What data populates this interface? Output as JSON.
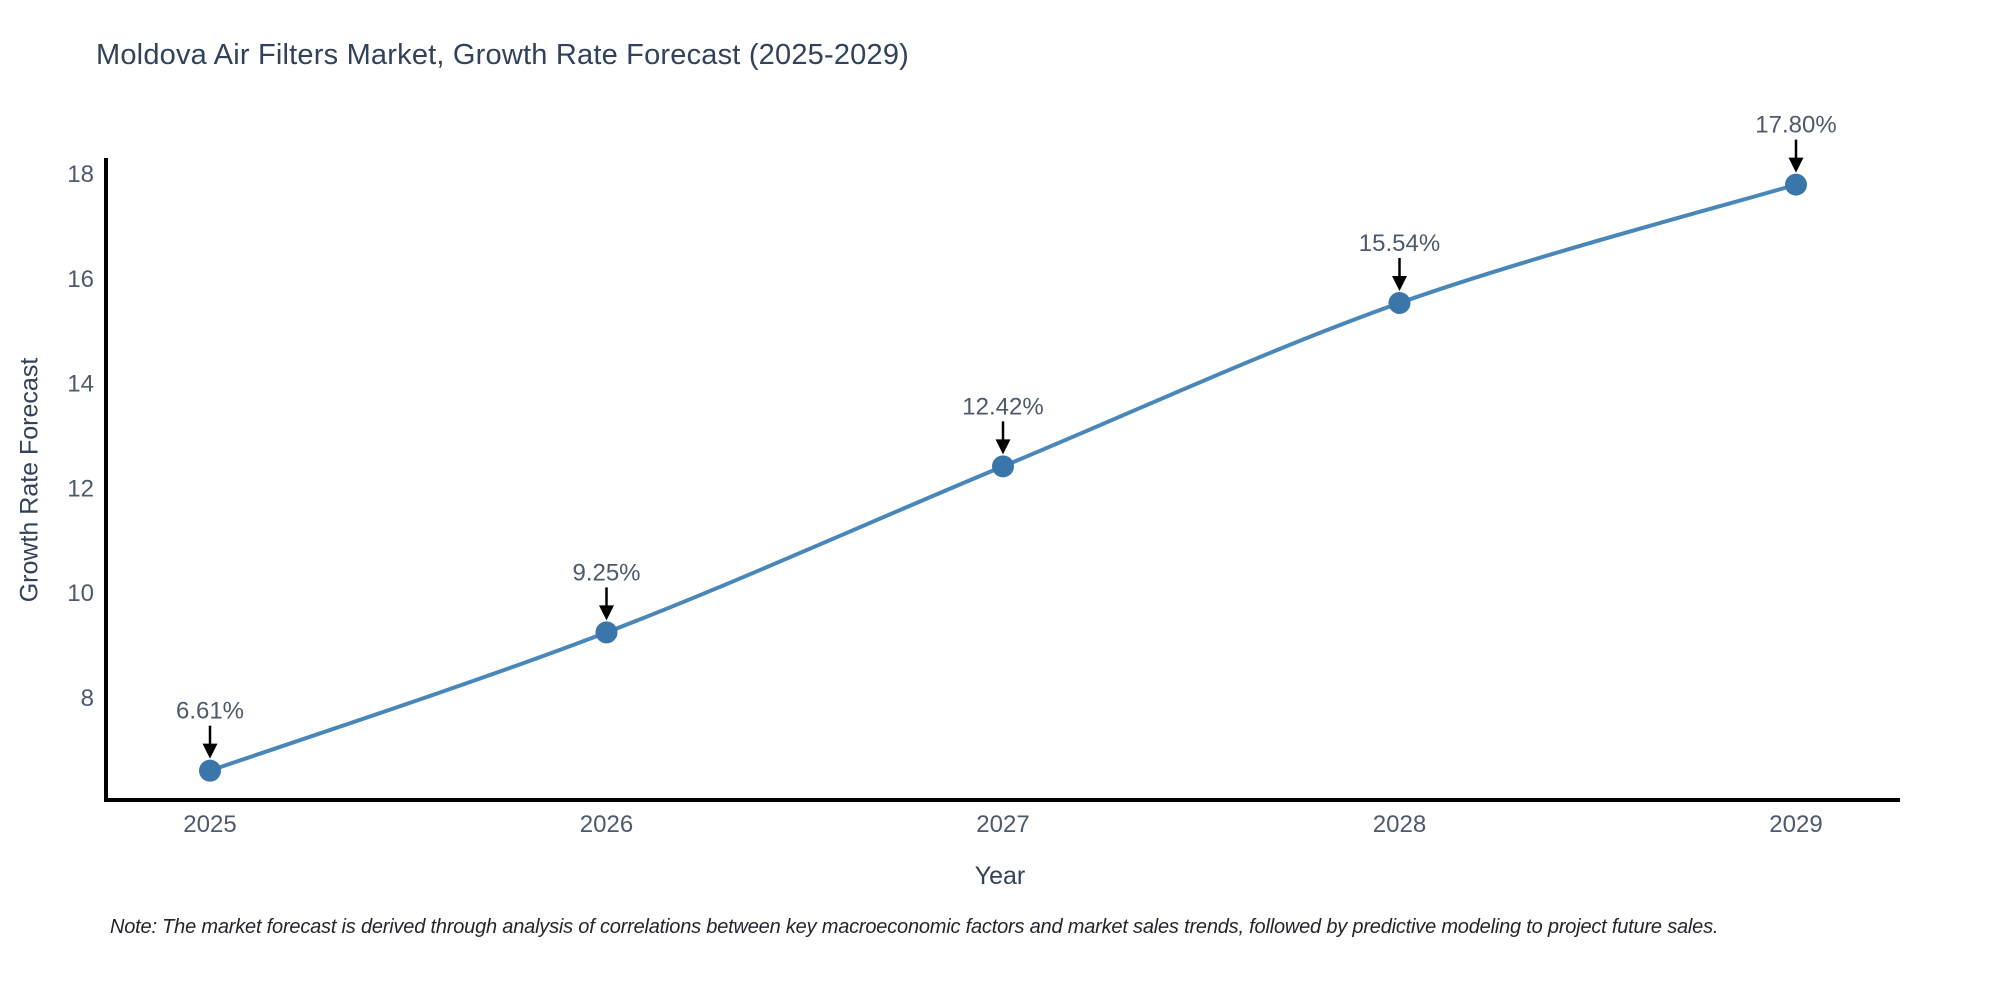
{
  "title": "Moldova Air Filters Market, Growth Rate Forecast (2025-2029)",
  "note": "Note: The market forecast is derived through analysis of correlations between key macroeconomic factors and market sales trends, followed by predictive modeling to project future sales.",
  "chart_data": {
    "type": "line",
    "title": "Moldova Air Filters Market, Growth Rate Forecast (2025-2029)",
    "x": [
      2025,
      2026,
      2027,
      2028,
      2029
    ],
    "x_tick_labels": [
      "2025",
      "2026",
      "2027",
      "2028",
      "2029"
    ],
    "series": [
      {
        "name": "Growth Rate Forecast",
        "values": [
          6.61,
          9.25,
          12.42,
          15.54,
          17.8
        ]
      }
    ],
    "point_labels": [
      "6.61%",
      "9.25%",
      "12.42%",
      "15.54%",
      "17.80%"
    ],
    "xlabel": "Year",
    "ylabel": "Growth Rate Forecast",
    "y_ticks": [
      8,
      10,
      12,
      14,
      16,
      18
    ],
    "ylim": [
      6.05,
      18.27
    ],
    "grid": false,
    "legend_position": "none",
    "marker_style": "circle",
    "line_shape": "spline",
    "colors": {
      "line": "#4a87b9",
      "marker": "#3b76ab",
      "arrow": "#000000",
      "axis": "#000000",
      "title_text": "#31425a",
      "tick_text": "#4d5a6d",
      "annotation_text": "#4d5a6d",
      "note_text": "#21262e",
      "background": "#ffffff"
    }
  }
}
